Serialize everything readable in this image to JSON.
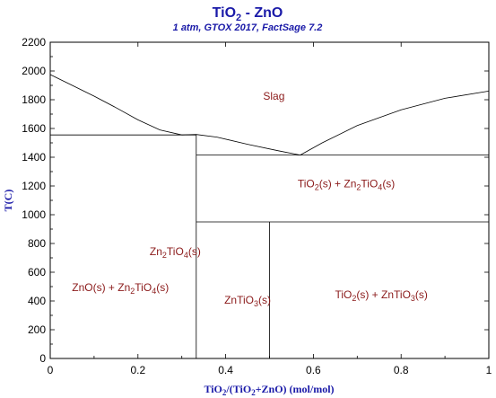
{
  "chart_data": {
    "type": "line",
    "title": {
      "main": "TiO",
      "sub": "2",
      "rest": " - ZnO"
    },
    "subtitle": "1 atm, GTOX 2017, FactSage 7.2",
    "xlabel": {
      "a": "TiO",
      "a_sub": "2",
      "b": "/(TiO",
      "b_sub": "2",
      "c": "+ZnO) (mol/mol)"
    },
    "ylabel": "T(C)",
    "xlim": [
      0,
      1
    ],
    "ylim": [
      0,
      2200
    ],
    "x_ticks": [
      "0",
      "0.2",
      "0.4",
      "0.6",
      "0.8",
      "1"
    ],
    "x_tick_values": [
      0,
      0.2,
      0.4,
      0.6,
      0.8,
      1
    ],
    "y_ticks": [
      "0",
      "200",
      "400",
      "600",
      "800",
      "1000",
      "1200",
      "1400",
      "1600",
      "1800",
      "2000",
      "2200"
    ],
    "y_tick_values": [
      0,
      200,
      400,
      600,
      800,
      1000,
      1200,
      1400,
      1600,
      1800,
      2000,
      2200
    ],
    "liquidus_left": [
      [
        0,
        1975
      ],
      [
        0.05,
        1900
      ],
      [
        0.1,
        1825
      ],
      [
        0.15,
        1745
      ],
      [
        0.2,
        1660
      ],
      [
        0.25,
        1590
      ],
      [
        0.3,
        1555
      ]
    ],
    "liquidus_mid": [
      [
        0.3,
        1555
      ],
      [
        0.333,
        1558
      ],
      [
        0.38,
        1540
      ],
      [
        0.45,
        1490
      ],
      [
        0.52,
        1445
      ],
      [
        0.57,
        1415
      ]
    ],
    "liquidus_right": [
      [
        0.57,
        1415
      ],
      [
        0.62,
        1500
      ],
      [
        0.7,
        1620
      ],
      [
        0.8,
        1730
      ],
      [
        0.9,
        1810
      ],
      [
        1,
        1860
      ]
    ],
    "eutectic_zno": {
      "x": [
        0,
        0.333
      ],
      "y": 1555
    },
    "eutectic_tio2": {
      "x": [
        0.333,
        1
      ],
      "y": 1415
    },
    "decomposition_line": {
      "x": [
        0.333,
        1
      ],
      "y": 950
    },
    "zn2tio4_line": {
      "x": 0.333,
      "y": [
        0,
        1555
      ]
    },
    "zntio3_line": {
      "x": 0.5,
      "y": [
        0,
        950
      ]
    },
    "regions": [
      {
        "x": 0.51,
        "y": 1800,
        "parts": [
          {
            "t": "Slag"
          }
        ]
      },
      {
        "x": 0.675,
        "y": 1190,
        "parts": [
          {
            "t": "TiO"
          },
          {
            "t": "2",
            "sub": true
          },
          {
            "t": "(s) + Zn"
          },
          {
            "t": "2",
            "sub": true
          },
          {
            "t": "TiO"
          },
          {
            "t": "4",
            "sub": true
          },
          {
            "t": "(s)"
          }
        ]
      },
      {
        "x": 0.285,
        "y": 720,
        "parts": [
          {
            "t": "Zn"
          },
          {
            "t": "2",
            "sub": true
          },
          {
            "t": "TiO"
          },
          {
            "t": "4",
            "sub": true
          },
          {
            "t": "(s)"
          }
        ]
      },
      {
        "x": 0.16,
        "y": 470,
        "parts": [
          {
            "t": "ZnO(s) + Zn"
          },
          {
            "t": "2",
            "sub": true
          },
          {
            "t": "TiO"
          },
          {
            "t": "4",
            "sub": true
          },
          {
            "t": "(s)"
          }
        ]
      },
      {
        "x": 0.45,
        "y": 380,
        "parts": [
          {
            "t": "ZnTiO"
          },
          {
            "t": "3",
            "sub": true
          },
          {
            "t": "(s)"
          }
        ]
      },
      {
        "x": 0.755,
        "y": 420,
        "parts": [
          {
            "t": "TiO"
          },
          {
            "t": "2",
            "sub": true
          },
          {
            "t": "(s) + ZnTiO"
          },
          {
            "t": "3",
            "sub": true
          },
          {
            "t": "(s)"
          }
        ]
      }
    ],
    "colors": {
      "title": "#1a1aa8",
      "region_text": "#8b1a1a",
      "lines": "#000000"
    }
  }
}
